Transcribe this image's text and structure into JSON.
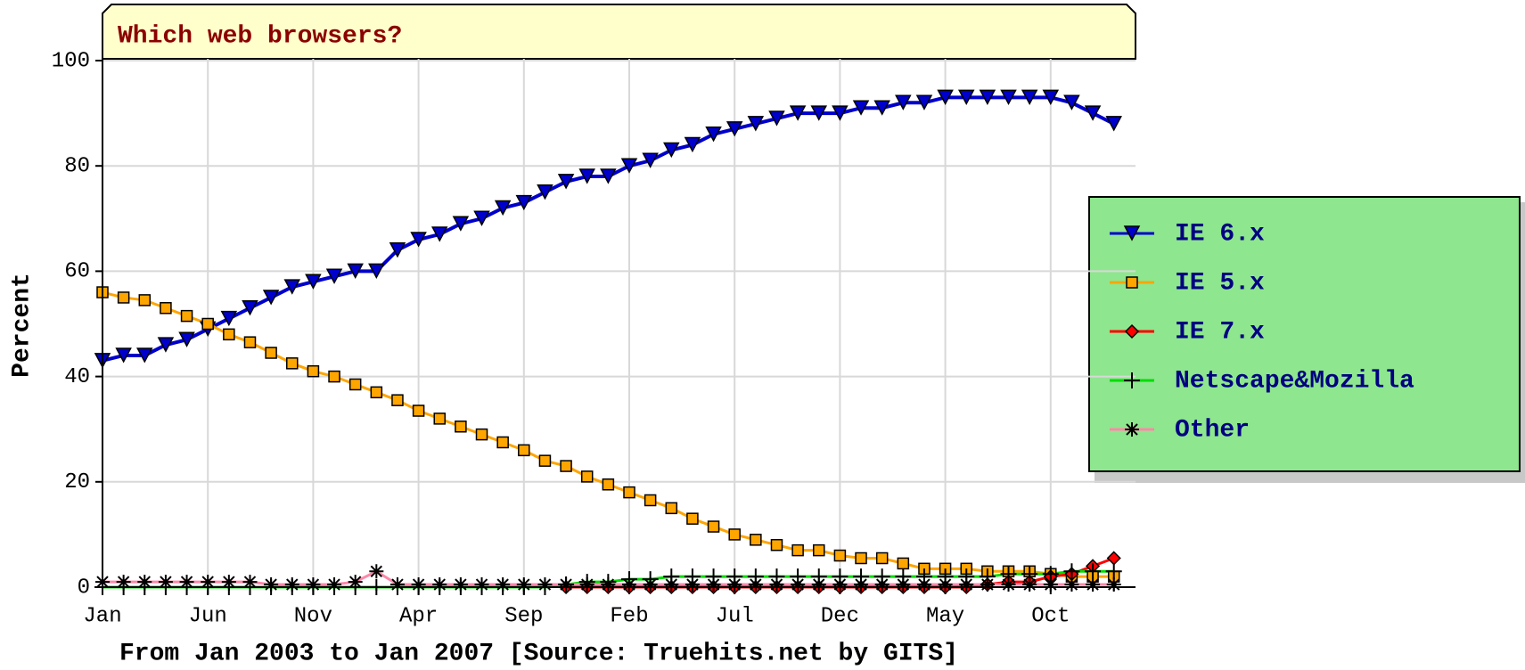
{
  "chart_data": {
    "type": "line",
    "title": "Which web browsers?",
    "y_label": "Percent",
    "x_label": "From Jan 2003 to Jan 2007 [Source: Truehits.net by GITS]",
    "categories": [
      "Jan",
      null,
      null,
      null,
      null,
      "Jun",
      null,
      null,
      null,
      null,
      "Nov",
      null,
      null,
      null,
      null,
      "Apr",
      null,
      null,
      null,
      null,
      "Sep",
      null,
      null,
      null,
      null,
      "Feb",
      null,
      null,
      null,
      null,
      "Jul",
      null,
      null,
      null,
      null,
      "Dec",
      null,
      null,
      null,
      null,
      "May",
      null,
      null,
      null,
      null,
      "Oct",
      null,
      null,
      null
    ],
    "ylim": [
      0,
      100
    ],
    "yticks": [
      0,
      20,
      40,
      60,
      80,
      100
    ],
    "grid": true,
    "legend": "right",
    "series": [
      {
        "name": "IE 6.x",
        "color": "#0000cc",
        "marker": "triangle-down",
        "values": [
          43,
          44,
          44,
          46,
          47,
          49,
          51,
          53,
          55,
          57,
          58,
          59,
          60,
          60,
          64,
          66,
          67,
          69,
          70,
          72,
          73,
          75,
          77,
          78,
          78,
          80,
          81,
          83,
          84,
          86,
          87,
          88,
          89,
          90,
          90,
          90,
          91,
          91,
          92,
          92,
          93,
          93,
          93,
          93,
          93,
          93,
          92,
          90,
          88
        ]
      },
      {
        "name": "IE 5.x",
        "color": "#ffa500",
        "marker": "square",
        "values": [
          56,
          55,
          54.5,
          53,
          51.5,
          50,
          48,
          46.5,
          44.5,
          42.5,
          41,
          40,
          38.5,
          37,
          35.5,
          33.5,
          32,
          30.5,
          29,
          27.5,
          26,
          24,
          23,
          21,
          19.5,
          18,
          16.5,
          15,
          13,
          11.5,
          10,
          9,
          8,
          7,
          7,
          6,
          5.5,
          5.5,
          4.5,
          3.5,
          3.5,
          3.5,
          3,
          3,
          3,
          2.5,
          2,
          2,
          2
        ]
      },
      {
        "name": "IE 7.x",
        "color": "#ff0000",
        "marker": "diamond",
        "values": [
          null,
          null,
          null,
          null,
          null,
          null,
          null,
          null,
          null,
          null,
          null,
          null,
          null,
          null,
          null,
          null,
          null,
          null,
          null,
          null,
          null,
          null,
          0,
          0,
          0,
          0,
          0,
          0,
          0,
          0,
          0,
          0,
          0,
          0,
          0,
          0,
          0,
          0,
          0,
          0,
          0,
          0,
          0.5,
          1,
          1,
          2,
          2.5,
          4,
          5.5
        ]
      },
      {
        "name": "Netscape&Mozilla",
        "color": "#00dd00",
        "marker": "plus",
        "values": [
          0,
          0,
          0,
          0,
          0,
          0,
          0,
          0,
          0,
          0,
          0,
          0,
          0,
          0,
          0,
          0,
          0,
          0,
          0,
          0,
          0,
          0,
          0.5,
          1,
          1,
          1.5,
          1.5,
          2,
          2,
          2,
          2,
          2,
          2,
          2,
          2,
          2,
          2,
          2,
          2,
          2,
          2,
          2,
          2,
          2.5,
          2.5,
          2.5,
          3,
          3,
          3
        ]
      },
      {
        "name": "Other",
        "color": "#ff88aa",
        "marker": "asterisk",
        "values": [
          1,
          1,
          1,
          1,
          1,
          1,
          1,
          1,
          0.5,
          0.5,
          0.5,
          0.5,
          1,
          3,
          0.5,
          0.5,
          0.5,
          0.5,
          0.5,
          0.5,
          0.5,
          0.5,
          0.5,
          0.5,
          0.5,
          0.5,
          0.5,
          0.5,
          0.5,
          0.5,
          0.5,
          0.5,
          0.5,
          0.5,
          0.5,
          0.5,
          0.5,
          0.5,
          0.5,
          0.5,
          0.5,
          0.5,
          0.5,
          0.5,
          0.5,
          0.5,
          0.5,
          0.5,
          0.5
        ]
      }
    ]
  }
}
